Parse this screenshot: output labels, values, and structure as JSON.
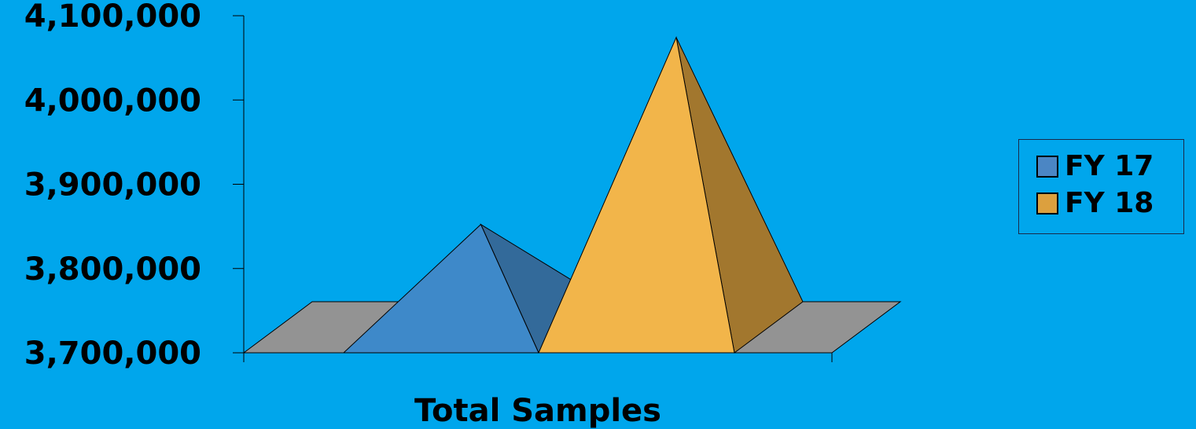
{
  "chart_data": {
    "type": "bar",
    "bar_shape": "3d-pyramid",
    "categories": [
      "Total Samples"
    ],
    "xlabel": "Total Samples",
    "ylabel": "",
    "title": "",
    "ylim": [
      3700000,
      4100000
    ],
    "y_ticks": [
      4100000,
      4000000,
      3900000,
      3800000,
      3700000
    ],
    "y_tick_labels": [
      "4,100,000",
      "4,000,000",
      "3,900,000",
      "3,800,000",
      "3,700,000"
    ],
    "grid": false,
    "legend_position": "right",
    "series": [
      {
        "name": "FY 17",
        "values": [
          3822000
        ],
        "color": "#3e89c9",
        "side_color": "#336a9a"
      },
      {
        "name": "FY 18",
        "values": [
          4044000
        ],
        "color": "#f2b54a",
        "side_color": "#a2772e"
      }
    ]
  },
  "legend": {
    "items": [
      {
        "label": "FY 17",
        "color": "#4b86c4"
      },
      {
        "label": "FY 18",
        "color": "#dca03e"
      }
    ]
  },
  "colors": {
    "background": "#00a6ec",
    "floor": "#939393"
  }
}
